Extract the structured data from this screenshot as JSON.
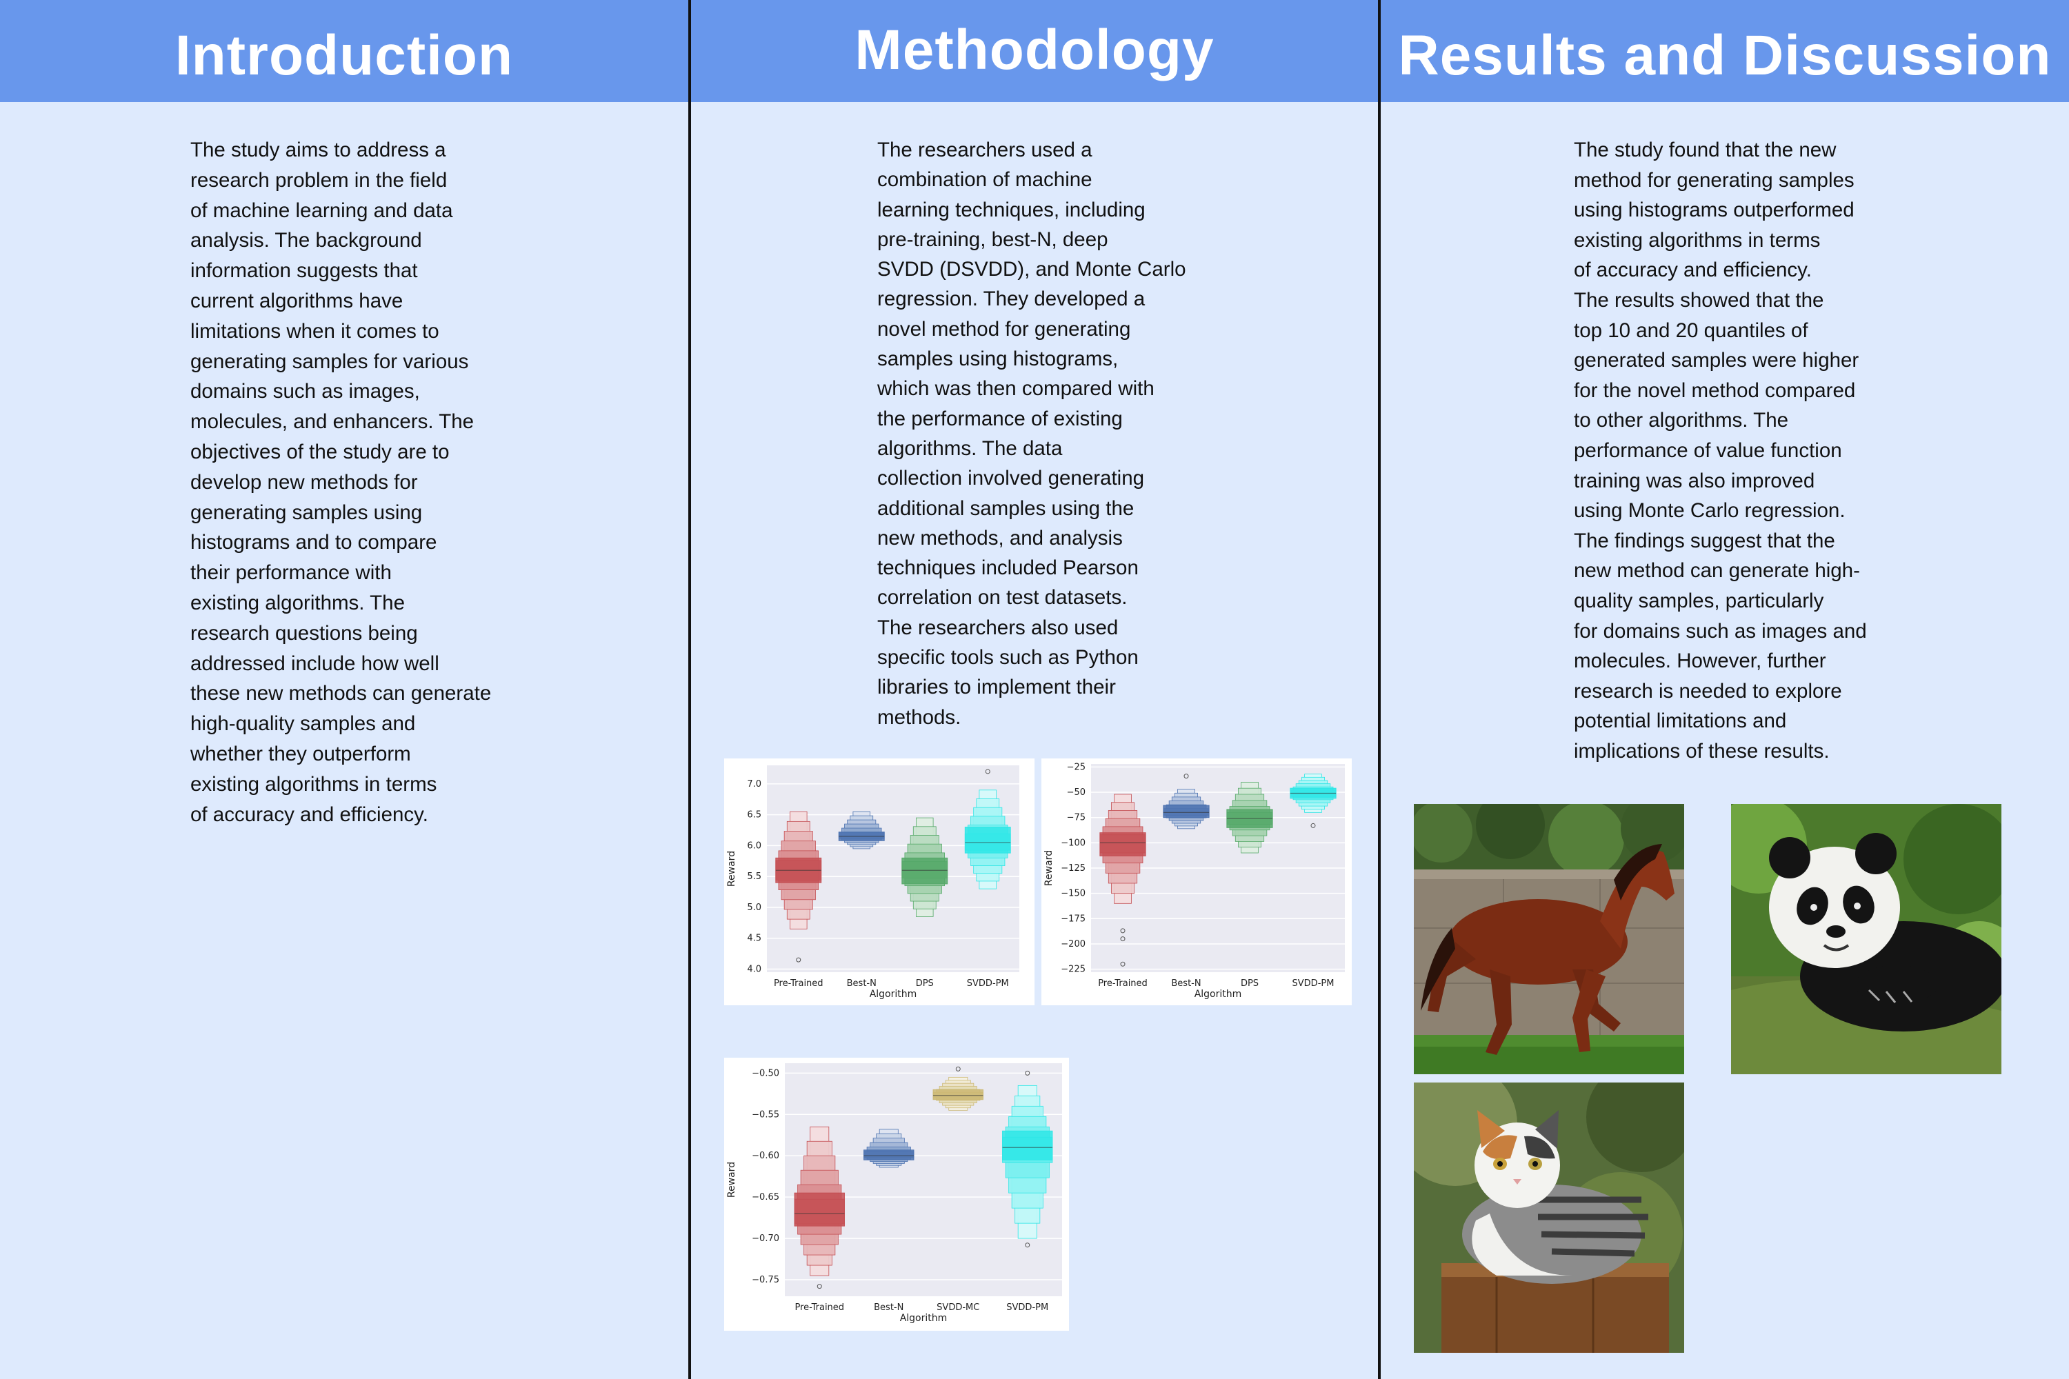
{
  "sections": {
    "intro": {
      "title": "Introduction",
      "lines": [
        "The study aims to address a",
        "research problem in the field",
        "of machine learning and data",
        "analysis. The background",
        "information suggests that",
        "current algorithms have",
        "limitations when it comes to",
        "generating samples for various",
        "domains such as images,",
        "molecules, and enhancers. The",
        "objectives of the study are to",
        "develop new methods for",
        "generating samples using",
        "histograms and to compare",
        "their performance with",
        "existing algorithms. The",
        "research questions being",
        "addressed include how well",
        "these new methods can generate",
        "high-quality samples and",
        "whether they outperform",
        "existing algorithms in terms",
        "of accuracy and efficiency."
      ]
    },
    "methods": {
      "title": "Methodology",
      "lines": [
        "The researchers used a",
        "combination of machine",
        "learning techniques, including",
        "pre-training, best-N, deep",
        "SVDD (DSVDD), and Monte Carlo",
        "regression. They developed a",
        "novel method for generating",
        "samples using histograms,",
        "which was then compared with",
        "the performance of existing",
        "algorithms. The data",
        "collection involved generating",
        "additional samples using the",
        "new methods, and analysis",
        "techniques included Pearson",
        "correlation on test datasets.",
        "The researchers also used",
        "specific tools such as Python",
        "libraries to implement their",
        "methods."
      ]
    },
    "results": {
      "title": "Results and Discussion",
      "lines": [
        "The study found that the new",
        "method for generating samples",
        "using histograms outperformed",
        "existing algorithms in terms",
        "of accuracy and efficiency.",
        "The results showed that the",
        "top 10 and 20 quantiles of",
        "generated samples were higher",
        "for the novel method compared",
        "to other algorithms. The",
        "performance of value function",
        "training was also improved",
        "using Monte Carlo regression.",
        "The findings suggest that the",
        "new method can generate high-",
        "quality samples, particularly",
        "for domains such as images and",
        "molecules. However, further",
        "research is needed to explore",
        "potential limitations and",
        "implications of these results."
      ]
    }
  },
  "images": [
    {
      "name": "horse-photo",
      "subject": "running brown horse"
    },
    {
      "name": "panda-photo",
      "subject": "panda on mossy log"
    },
    {
      "name": "cat-photo",
      "subject": "calico cat on wooden post"
    }
  ],
  "chart_data": [
    {
      "type": "boxen",
      "xlabel": "Algorithm",
      "ylabel": "Reward",
      "ylim": [
        3.95,
        7.3
      ],
      "yticks": [
        4.0,
        4.5,
        5.0,
        5.5,
        6.0,
        6.5,
        7.0
      ],
      "ytick_labels": [
        "4.0",
        "4.5",
        "5.0",
        "5.5",
        "6.0",
        "6.5",
        "7.0"
      ],
      "categories": [
        "Pre-Trained",
        "Best-N",
        "DPS",
        "SVDD-PM"
      ],
      "colors": [
        "#c44e52",
        "#4c72b0",
        "#55a868",
        "#2ee6e6"
      ],
      "median": [
        5.6,
        6.15,
        5.6,
        6.05
      ],
      "q1": [
        5.4,
        6.08,
        5.38,
        5.88
      ],
      "q3": [
        5.8,
        6.22,
        5.8,
        6.3
      ],
      "min": [
        4.65,
        5.95,
        4.85,
        5.3
      ],
      "max": [
        6.55,
        6.55,
        6.45,
        6.9
      ],
      "outliers": [
        [
          4.15
        ],
        [],
        [],
        [
          7.2
        ]
      ]
    },
    {
      "type": "boxen",
      "xlabel": "Algorithm",
      "ylabel": "Reward",
      "ylim": [
        -228,
        -22
      ],
      "yticks": [
        -225,
        -200,
        -175,
        -150,
        -125,
        -100,
        -75,
        -50,
        -25
      ],
      "ytick_labels": [
        "−225",
        "−200",
        "−175",
        "−150",
        "−125",
        "−100",
        "−75",
        "−50",
        "−25"
      ],
      "categories": [
        "Pre-Trained",
        "Best-N",
        "DPS",
        "SVDD-PM"
      ],
      "colors": [
        "#c44e52",
        "#4c72b0",
        "#55a868",
        "#2ee6e6"
      ],
      "median": [
        -100,
        -70,
        -76,
        -51
      ],
      "q1": [
        -113,
        -75,
        -85,
        -56
      ],
      "q3": [
        -90,
        -63,
        -67,
        -46
      ],
      "min": [
        -160,
        -86,
        -110,
        -70
      ],
      "max": [
        -52,
        -47,
        -40,
        -32
      ],
      "outliers": [
        [
          -220,
          -195,
          -187
        ],
        [
          -34
        ],
        [],
        [
          -83
        ]
      ]
    },
    {
      "type": "boxen",
      "xlabel": "Algorithm",
      "ylabel": "Reward",
      "ylim": [
        -0.77,
        -0.488
      ],
      "yticks": [
        -0.75,
        -0.7,
        -0.65,
        -0.6,
        -0.55,
        -0.5
      ],
      "ytick_labels": [
        "−0.75",
        "−0.70",
        "−0.65",
        "−0.60",
        "−0.55",
        "−0.50"
      ],
      "categories": [
        "Pre-Trained",
        "Best-N",
        "SVDD-MC",
        "SVDD-PM"
      ],
      "colors": [
        "#c44e52",
        "#4c72b0",
        "#ccb974",
        "#2ee6e6"
      ],
      "median": [
        -0.67,
        -0.6,
        -0.527,
        -0.59
      ],
      "q1": [
        -0.685,
        -0.605,
        -0.532,
        -0.605
      ],
      "q3": [
        -0.645,
        -0.593,
        -0.52,
        -0.57
      ],
      "min": [
        -0.745,
        -0.614,
        -0.545,
        -0.7
      ],
      "max": [
        -0.565,
        -0.568,
        -0.505,
        -0.515
      ],
      "outliers": [
        [
          -0.758
        ],
        [],
        [
          -0.495
        ],
        [
          -0.5,
          -0.708
        ]
      ]
    }
  ]
}
